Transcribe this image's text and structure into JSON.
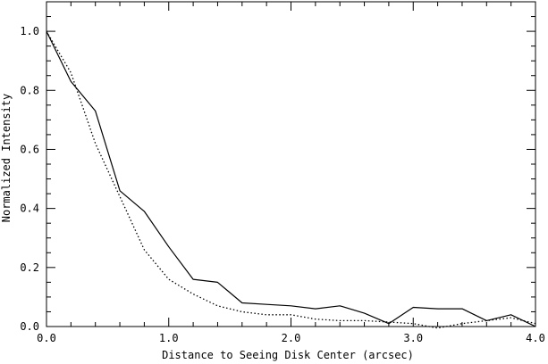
{
  "chart_data": {
    "type": "line",
    "title": "",
    "xlabel": "Distance to Seeing Disk Center (arcsec)",
    "ylabel": "Normalized Intensity",
    "xlim": [
      0,
      4
    ],
    "ylim": [
      0,
      1.1
    ],
    "grid": false,
    "legend": "none",
    "x_ticks": [
      0,
      1,
      2,
      3,
      4
    ],
    "x_tick_labels": [
      "0.0",
      "1.0",
      "2.0",
      "3.0",
      "4.0"
    ],
    "y_ticks": [
      0,
      0.2,
      0.4,
      0.6,
      0.8,
      1.0
    ],
    "y_tick_labels": [
      "0.0",
      "0.2",
      "0.4",
      "0.6",
      "0.8",
      "1.0"
    ],
    "series": [
      {
        "style": "solid",
        "color": "#000000",
        "x": [
          0.0,
          0.2,
          0.4,
          0.6,
          0.8,
          1.0,
          1.2,
          1.4,
          1.6,
          1.8,
          2.0,
          2.2,
          2.4,
          2.6,
          2.8,
          3.0,
          3.2,
          3.4,
          3.6,
          3.8,
          4.0
        ],
        "y": [
          1.0,
          0.83,
          0.73,
          0.46,
          0.39,
          0.27,
          0.16,
          0.15,
          0.08,
          0.075,
          0.07,
          0.06,
          0.07,
          0.045,
          0.01,
          0.065,
          0.06,
          0.06,
          0.02,
          0.04,
          0.0
        ]
      },
      {
        "style": "dotted",
        "color": "#000000",
        "x": [
          0.0,
          0.2,
          0.4,
          0.6,
          0.8,
          1.0,
          1.2,
          1.4,
          1.6,
          1.8,
          2.0,
          2.2,
          2.4,
          2.6,
          2.8,
          3.0,
          3.2,
          3.4,
          3.6,
          3.8,
          4.0
        ],
        "y": [
          1.0,
          0.86,
          0.62,
          0.44,
          0.26,
          0.16,
          0.11,
          0.07,
          0.05,
          0.04,
          0.04,
          0.025,
          0.02,
          0.02,
          0.015,
          0.01,
          -0.005,
          0.01,
          0.02,
          0.03,
          0.01
        ]
      }
    ]
  }
}
